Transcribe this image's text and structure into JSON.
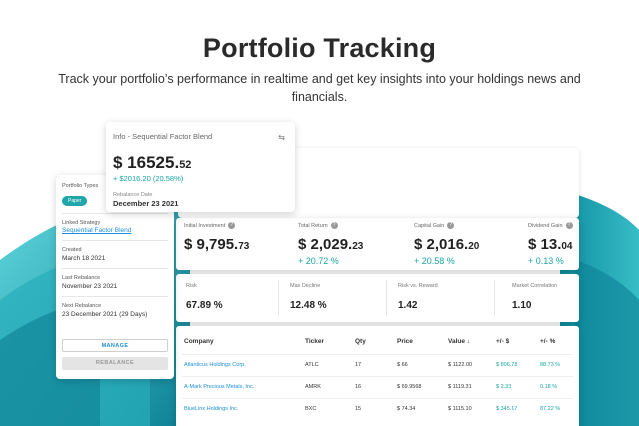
{
  "hero": {
    "title": "Portfolio Tracking",
    "subtitle": "Track your portfolio’s performance in realtime and get key insights into your holdings news and financials."
  },
  "info_card": {
    "title": "Info - Sequential Factor Blend",
    "icon": "compare-icon",
    "amount_main": "$ 16525.",
    "amount_cents": "52",
    "change": "+ $2016.20 (20.58%)",
    "rebalance_label": "Rebalance Date",
    "rebalance_date": "December 23 2021"
  },
  "side": {
    "portfolio_type_label": "Portfolio Types",
    "portfolio_type_value": "Paper",
    "linked_strategy_label": "Linked Strategy",
    "linked_strategy_value": "Sequential Factor Blend",
    "created_label": "Created",
    "created_value": "March 18 2021",
    "last_rebalance_label": "Last Rebalance",
    "last_rebalance_value": "November 23 2021",
    "next_rebalance_label": "Next Rebalance",
    "next_rebalance_value": "23 December 2021 (29 Days)",
    "manage_label": "MANAGE",
    "rebalance_label": "REBALANCE"
  },
  "stats": [
    {
      "label": "Initial Investment",
      "main": "$ 9,795.",
      "cents": "73",
      "pct": ""
    },
    {
      "label": "Total Return",
      "main": "$ 2,029.",
      "cents": "23",
      "pct": "+ 20.72 %"
    },
    {
      "label": "Capital Gain",
      "main": "$ 2,016.",
      "cents": "20",
      "pct": "+ 20.58 %"
    },
    {
      "label": "Dividend Gain",
      "main": "$ 13.",
      "cents": "04",
      "pct": "+ 0.13 %"
    }
  ],
  "risk": [
    {
      "label": "Risk",
      "value": "67.89 %"
    },
    {
      "label": "Max Decline",
      "value": "12.48 %"
    },
    {
      "label": "Risk vs. Reward",
      "value": "1.42"
    },
    {
      "label": "Market Correlation",
      "value": "1.10"
    }
  ],
  "table": {
    "headers": [
      "Company",
      "Ticker",
      "Qty",
      "Price",
      "Value ↓",
      "+/- $",
      "+/- %"
    ],
    "rows": [
      [
        "Atlanticus Holdings Corp.",
        "ATLC",
        "17",
        "$ 66",
        "$ 1122.00",
        "$ 806.78",
        "88.73 %"
      ],
      [
        "A-Mark Precious Metals, Inc.",
        "AMRK",
        "16",
        "$ 69.9568",
        "$ 1119.31",
        "$ 2.33",
        "0.18 %"
      ],
      [
        "BlueLinx Holdings Inc.",
        "BXC",
        "15",
        "$ 74.34",
        "$ 1115.10",
        "$ 345.17",
        "87.22 %"
      ]
    ]
  },
  "colors": {
    "accent": "#1aa5a5",
    "link": "#1d8fd6",
    "wave_light": "#43c6cf",
    "wave_dark": "#0e8fa0"
  }
}
